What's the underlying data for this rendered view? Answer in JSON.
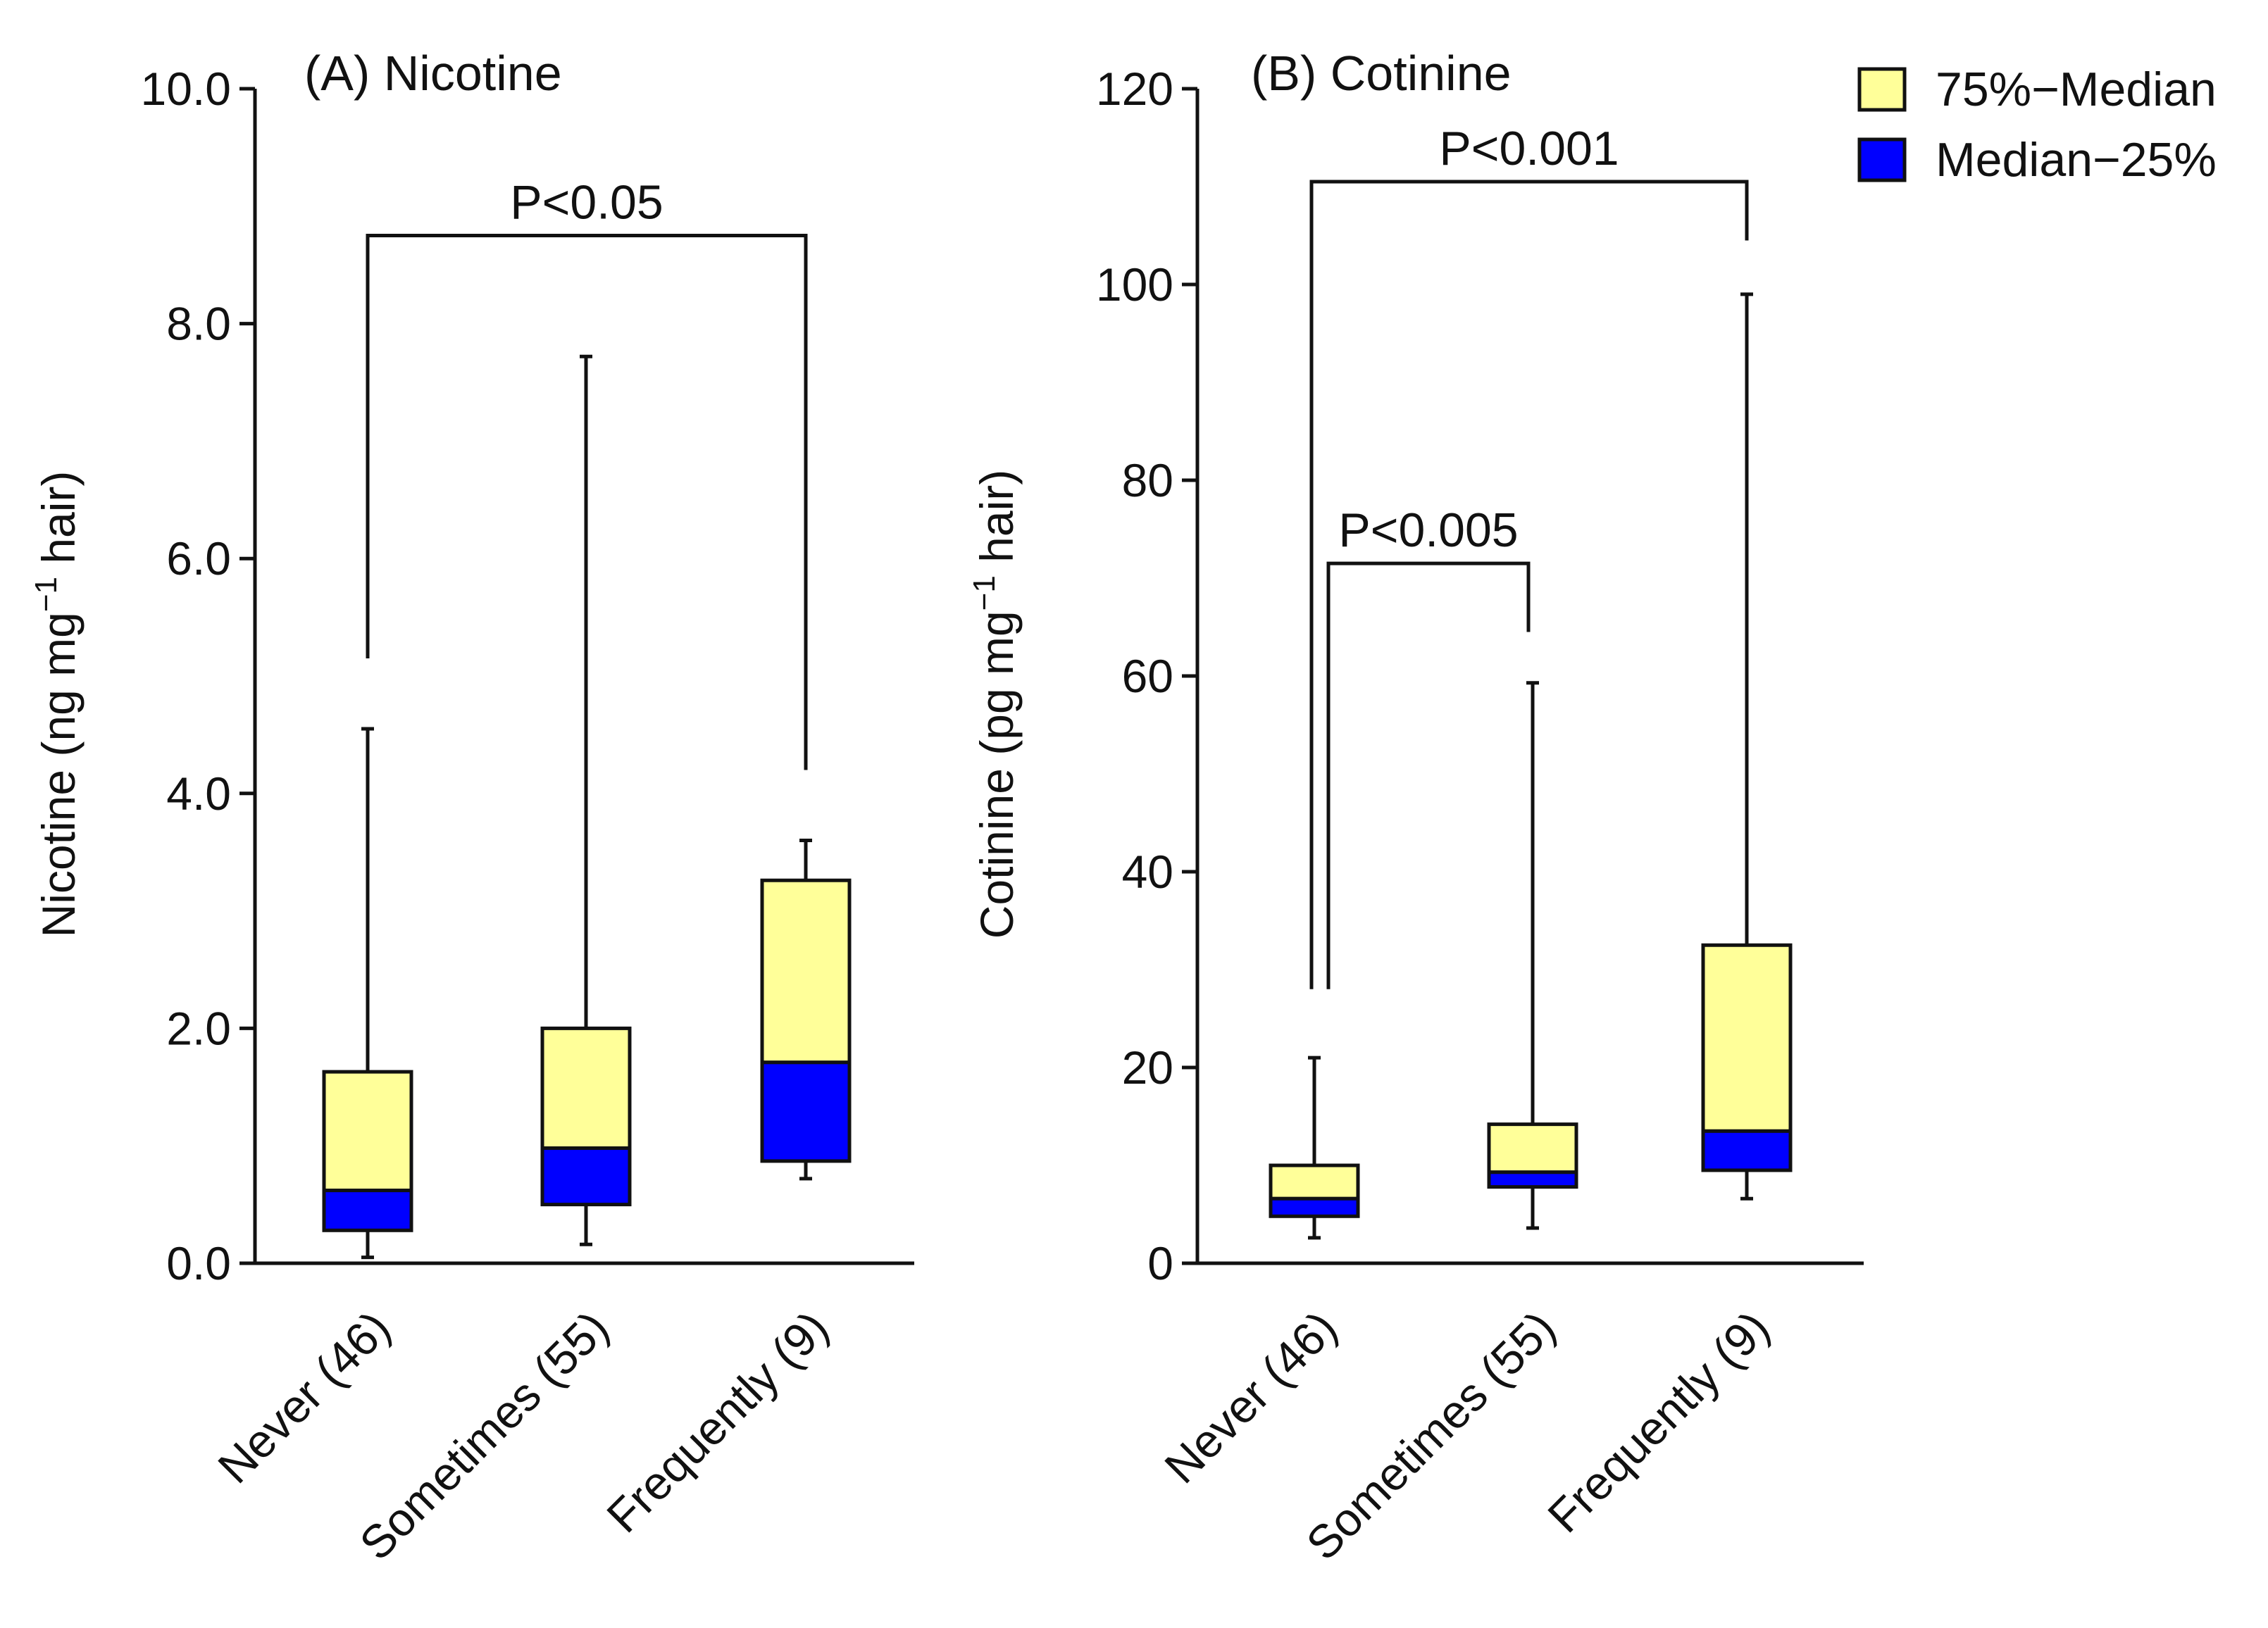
{
  "legend": {
    "items": [
      {
        "label": "75%−Median",
        "color": "#ffff99"
      },
      {
        "label": "Median−25%",
        "color": "#0000ff"
      }
    ]
  },
  "chart_data": [
    {
      "type": "box",
      "title": "(A) Nicotine",
      "ylabel": "Nicotine (ng mg",
      "ylabel_sup": "−1",
      "ylabel_end": " hair)",
      "ylim": [
        0,
        10
      ],
      "yticks": [
        0,
        2,
        4,
        6,
        8,
        10
      ],
      "ytick_labels": [
        "0.0",
        "2.0",
        "4.0",
        "6.0",
        "8.0",
        "10.0"
      ],
      "categories": [
        "Never (46)",
        "Sometimes (55)",
        "Frequently (9)"
      ],
      "series": [
        {
          "name": "Never (46)",
          "min": 0.05,
          "q1": 0.28,
          "median": 0.62,
          "q3": 1.63,
          "max": 4.55
        },
        {
          "name": "Sometimes (55)",
          "min": 0.16,
          "q1": 0.5,
          "median": 0.98,
          "q3": 2.0,
          "max": 7.72
        },
        {
          "name": "Frequently (9)",
          "min": 0.72,
          "q1": 0.87,
          "median": 1.71,
          "q3": 3.26,
          "max": 3.6
        }
      ],
      "comparisons": [
        {
          "from": 0,
          "to": 2,
          "label": "P<0.05",
          "y": 8.75,
          "drop_from": 5.15,
          "drop_to": 4.2
        }
      ],
      "colors": {
        "upper": "#ffff99",
        "lower": "#0000ff"
      }
    },
    {
      "type": "box",
      "title": "(B) Cotinine",
      "ylabel": "Cotinine (pg mg",
      "ylabel_sup": "−1",
      "ylabel_end": " hair)",
      "ylim": [
        0,
        120
      ],
      "yticks": [
        0,
        20,
        40,
        60,
        80,
        100,
        120
      ],
      "ytick_labels": [
        "0",
        "20",
        "40",
        "60",
        "80",
        "100",
        "120"
      ],
      "categories": [
        "Never (46)",
        "Sometimes (55)",
        "Frequently (9)"
      ],
      "series": [
        {
          "name": "Never (46)",
          "min": 2.6,
          "q1": 4.8,
          "median": 6.6,
          "q3": 10.0,
          "max": 21.0
        },
        {
          "name": "Sometimes (55)",
          "min": 3.6,
          "q1": 7.8,
          "median": 9.3,
          "q3": 14.2,
          "max": 59.3
        },
        {
          "name": "Frequently (9)",
          "min": 6.6,
          "q1": 9.5,
          "median": 13.5,
          "q3": 32.5,
          "max": 99.0
        }
      ],
      "comparisons": [
        {
          "from": 0,
          "to": 2,
          "label": "P<0.001",
          "y": 110.5,
          "drop_from": 28.0,
          "drop_to": 104.5
        },
        {
          "from": 0,
          "to": 1,
          "label": "P<0.005",
          "y": 71.5,
          "drop_from": 28.0,
          "drop_to": 64.5
        }
      ],
      "colors": {
        "upper": "#ffff99",
        "lower": "#0000ff"
      }
    }
  ]
}
